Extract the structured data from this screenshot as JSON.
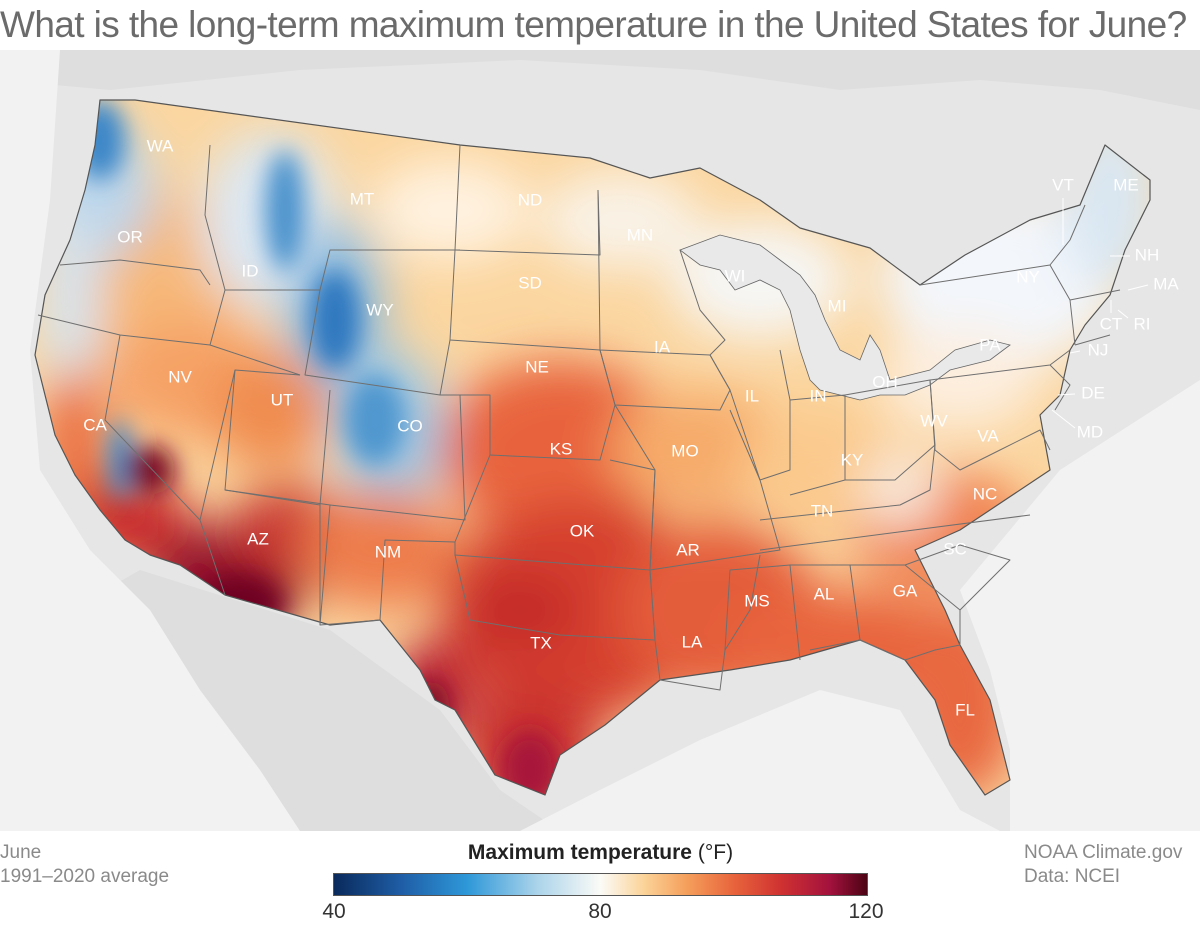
{
  "title": "What is the long-term maximum temperature in the United States for June?",
  "period": {
    "month": "June",
    "range": "1991–2020 average"
  },
  "credit": {
    "source": "NOAA Climate.gov",
    "data": "Data: NCEI"
  },
  "legend": {
    "label_bold": "Maximum temperature",
    "unit": "(°F)",
    "ticks": [
      "40",
      "80",
      "120"
    ],
    "colors": [
      "#0a2a5c",
      "#1f5fa8",
      "#2e98d8",
      "#aad3ea",
      "#fbfbf7",
      "#fbd49a",
      "#f5a05c",
      "#e8643c",
      "#cf3131",
      "#a3123d",
      "#4c0314"
    ]
  },
  "states": [
    {
      "abbr": "WA"
    },
    {
      "abbr": "OR"
    },
    {
      "abbr": "CA"
    },
    {
      "abbr": "ID"
    },
    {
      "abbr": "NV"
    },
    {
      "abbr": "MT"
    },
    {
      "abbr": "WY"
    },
    {
      "abbr": "UT"
    },
    {
      "abbr": "AZ"
    },
    {
      "abbr": "CO"
    },
    {
      "abbr": "NM"
    },
    {
      "abbr": "ND"
    },
    {
      "abbr": "SD"
    },
    {
      "abbr": "NE"
    },
    {
      "abbr": "KS"
    },
    {
      "abbr": "OK"
    },
    {
      "abbr": "TX"
    },
    {
      "abbr": "MN"
    },
    {
      "abbr": "IA"
    },
    {
      "abbr": "MO"
    },
    {
      "abbr": "AR"
    },
    {
      "abbr": "LA"
    },
    {
      "abbr": "WI"
    },
    {
      "abbr": "IL"
    },
    {
      "abbr": "MI"
    },
    {
      "abbr": "IN"
    },
    {
      "abbr": "OH"
    },
    {
      "abbr": "KY"
    },
    {
      "abbr": "TN"
    },
    {
      "abbr": "MS"
    },
    {
      "abbr": "AL"
    },
    {
      "abbr": "GA"
    },
    {
      "abbr": "FL"
    },
    {
      "abbr": "SC"
    },
    {
      "abbr": "NC"
    },
    {
      "abbr": "VA"
    },
    {
      "abbr": "WV"
    },
    {
      "abbr": "PA"
    },
    {
      "abbr": "NY"
    },
    {
      "abbr": "VT"
    },
    {
      "abbr": "ME"
    },
    {
      "abbr": "NH"
    },
    {
      "abbr": "MA"
    },
    {
      "abbr": "CT"
    },
    {
      "abbr": "RI"
    },
    {
      "abbr": "NJ"
    },
    {
      "abbr": "DE"
    },
    {
      "abbr": "MD"
    }
  ]
}
